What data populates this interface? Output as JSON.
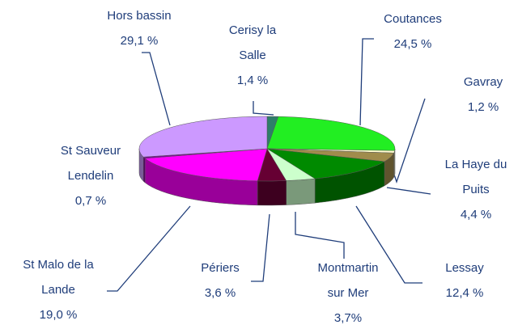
{
  "chart_data": {
    "type": "pie",
    "categories": [
      "Cerisy la Salle",
      "Coutances",
      "Gavray",
      "La Haye du Puits",
      "Lessay",
      "Montmartin sur Mer",
      "Périers",
      "St Malo de la Lande",
      "St Sauveur Lendelin",
      "Hors bassin"
    ],
    "values": [
      1.4,
      24.5,
      1.2,
      4.4,
      12.4,
      3.7,
      3.6,
      19.0,
      0.7,
      29.1
    ],
    "value_labels": [
      "1,4 %",
      "24,5 %",
      "1,2 %",
      "4,4 %",
      "12,4 %",
      "3,7%",
      "3,6 %",
      "19,0 %",
      "0,7 %",
      "29,1 %"
    ],
    "colors": [
      "#2e7d6a",
      "#22ee22",
      "#ffffcc",
      "#a08c4c",
      "#008a00",
      "#ccffcc",
      "#660033",
      "#ff00ff",
      "#8000a0",
      "#cc99ff"
    ]
  }
}
